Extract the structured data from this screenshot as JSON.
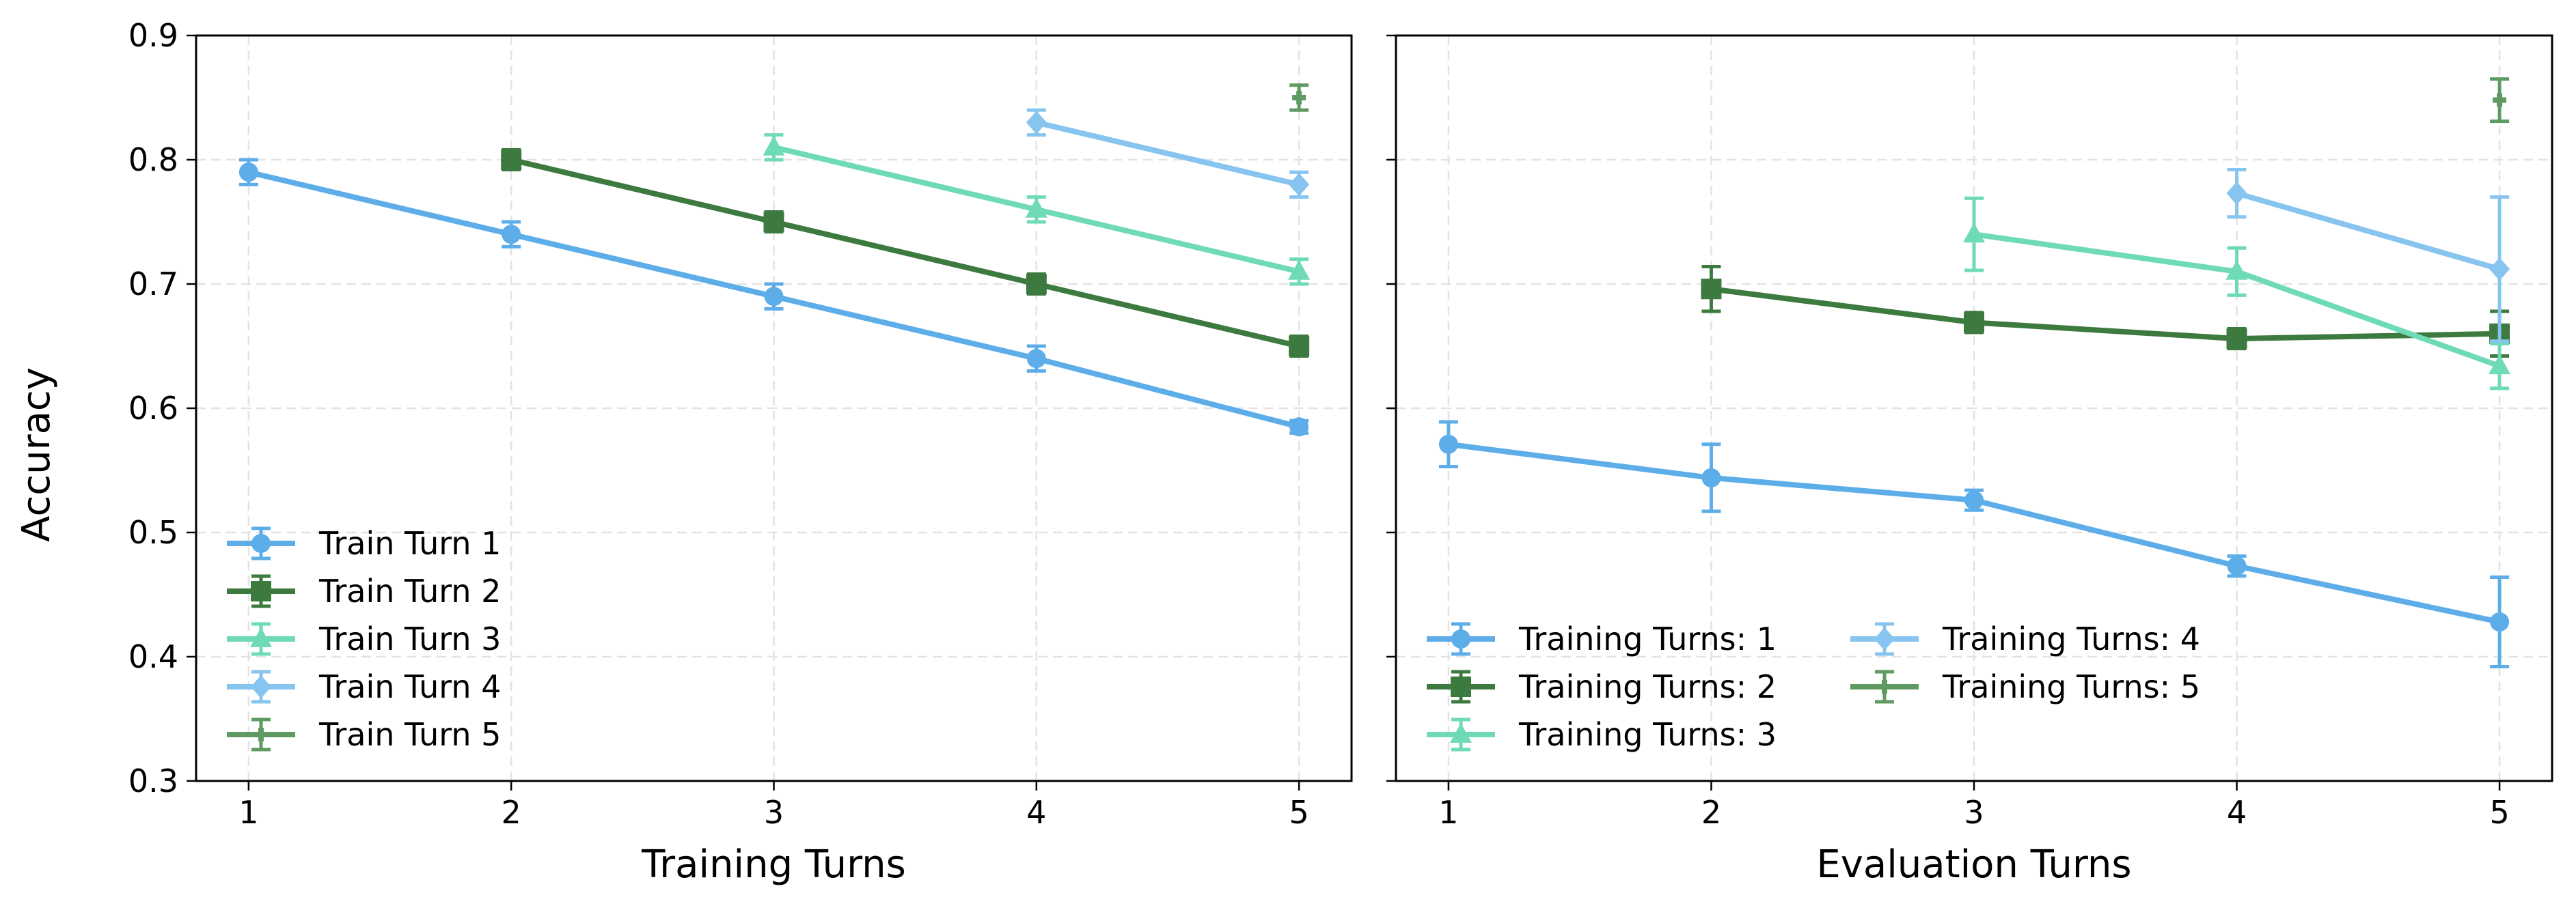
{
  "figure": {
    "ylabel_shared": "Accuracy"
  },
  "chart_data": [
    {
      "type": "line",
      "title": "",
      "xlabel": "Training Turns",
      "ylabel": "Accuracy",
      "xlim": [
        0.8,
        5.2
      ],
      "ylim": [
        0.3,
        0.9
      ],
      "xticks": [
        "1",
        "2",
        "3",
        "4",
        "5"
      ],
      "yticks": [
        "0.3",
        "0.4",
        "0.5",
        "0.6",
        "0.7",
        "0.8",
        "0.9"
      ],
      "grid": true,
      "legend": {
        "placement": "lower-left",
        "columns": 1
      },
      "series": [
        {
          "name": "Train Turn 1",
          "color": "#5DADE9",
          "marker": "circle",
          "x": [
            1,
            2,
            3,
            4,
            5
          ],
          "y": [
            0.79,
            0.74,
            0.69,
            0.64,
            0.585
          ],
          "err": [
            0.01,
            0.01,
            0.01,
            0.01,
            0.005
          ]
        },
        {
          "name": "Train Turn 2",
          "color": "#3D7A3F",
          "marker": "square",
          "x": [
            2,
            3,
            4,
            5
          ],
          "y": [
            0.8,
            0.75,
            0.7,
            0.65
          ],
          "err": [
            0.008,
            0.008,
            0.008,
            0.008
          ]
        },
        {
          "name": "Train Turn 3",
          "color": "#6EDBB6",
          "marker": "triangle",
          "x": [
            3,
            4,
            5
          ],
          "y": [
            0.81,
            0.76,
            0.71
          ],
          "err": [
            0.01,
            0.01,
            0.01
          ]
        },
        {
          "name": "Train Turn 4",
          "color": "#87C4F0",
          "marker": "diamond",
          "x": [
            4,
            5
          ],
          "y": [
            0.83,
            0.78
          ],
          "err": [
            0.01,
            0.01
          ]
        },
        {
          "name": "Train Turn 5",
          "color": "#5F9A62",
          "marker": "plus",
          "x": [
            5
          ],
          "y": [
            0.85
          ],
          "err": [
            0.01
          ]
        }
      ]
    },
    {
      "type": "line",
      "title": "",
      "xlabel": "Evaluation Turns",
      "ylabel": "",
      "xlim": [
        0.8,
        5.2
      ],
      "ylim": [
        0.3,
        0.9
      ],
      "xticks": [
        "1",
        "2",
        "3",
        "4",
        "5"
      ],
      "yticks": [],
      "grid": true,
      "legend": {
        "placement": "lower-left",
        "columns": 2
      },
      "series": [
        {
          "name": "Training Turns: 1",
          "color": "#5DADE9",
          "marker": "circle",
          "x": [
            1,
            2,
            3,
            4,
            5
          ],
          "y": [
            0.571,
            0.544,
            0.526,
            0.473,
            0.428
          ],
          "err": [
            0.018,
            0.027,
            0.008,
            0.008,
            0.036
          ]
        },
        {
          "name": "Training Turns: 2",
          "color": "#3D7A3F",
          "marker": "square",
          "x": [
            2,
            3,
            4,
            5
          ],
          "y": [
            0.696,
            0.669,
            0.656,
            0.66
          ],
          "err": [
            0.018,
            0.008,
            0.008,
            0.018
          ]
        },
        {
          "name": "Training Turns: 3",
          "color": "#6EDBB6",
          "marker": "triangle",
          "x": [
            3,
            4,
            5
          ],
          "y": [
            0.74,
            0.71,
            0.634
          ],
          "err": [
            0.029,
            0.019,
            0.018
          ]
        },
        {
          "name": "Training Turns: 4",
          "color": "#87C4F0",
          "marker": "diamond",
          "x": [
            4,
            5
          ],
          "y": [
            0.773,
            0.712
          ],
          "err": [
            0.019,
            0.058
          ]
        },
        {
          "name": "Training Turns: 5",
          "color": "#5F9A62",
          "marker": "plus",
          "x": [
            5
          ],
          "y": [
            0.848
          ],
          "err": [
            0.017
          ]
        }
      ]
    }
  ]
}
